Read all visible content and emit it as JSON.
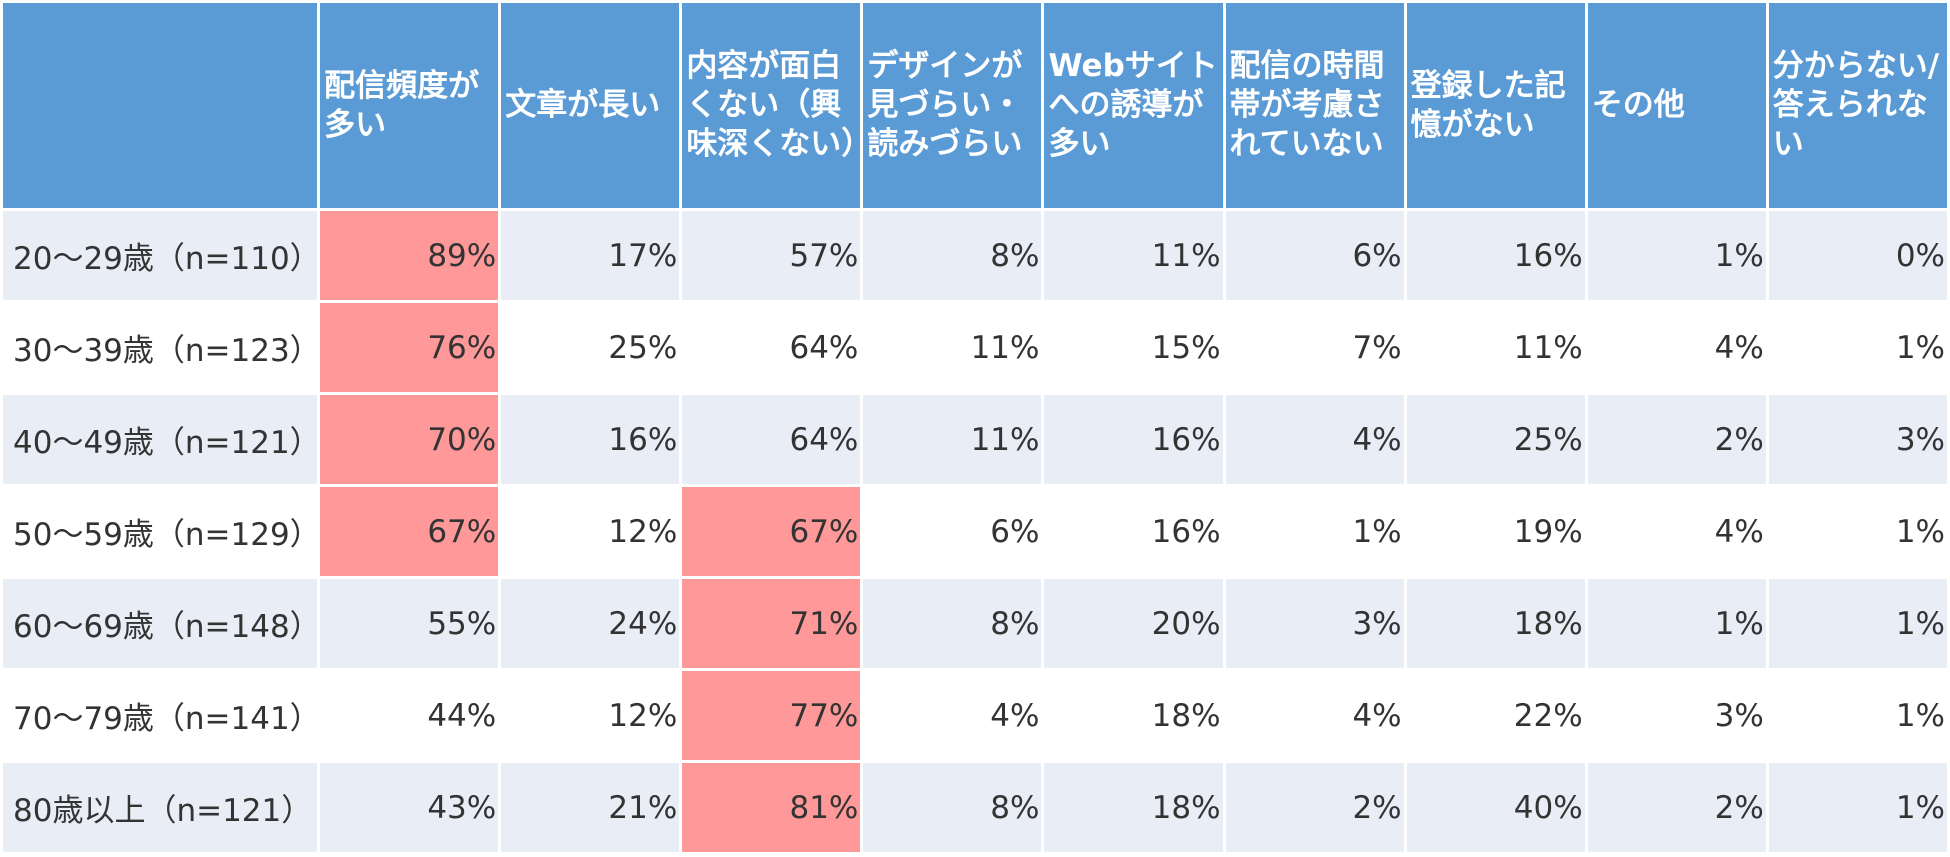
{
  "colors": {
    "header_bg": "#5b9bd5",
    "header_text": "#ffffff",
    "row_odd_bg": "#e9edf5",
    "row_even_bg": "#ffffff",
    "highlight_bg": "#ff9999",
    "cell_text": "#333333"
  },
  "chart_data": {
    "type": "table",
    "title": "",
    "corner": "",
    "columns": [
      "配信頻度が多い",
      "文章が長い",
      "内容が面白くない（興味深くない）",
      "デザインが見づらい・読みづらい",
      "Webサイトへの誘導が多い",
      "配信の時間帯が考慮されていない",
      "登録した記憶がない",
      "その他",
      "分からない/答えられない"
    ],
    "rows": [
      {
        "label": "20～29歳（n=110）",
        "values": [
          "89%",
          "17%",
          "57%",
          "8%",
          "11%",
          "6%",
          "16%",
          "1%",
          "0%"
        ],
        "highlight": [
          0
        ]
      },
      {
        "label": "30～39歳（n=123）",
        "values": [
          "76%",
          "25%",
          "64%",
          "11%",
          "15%",
          "7%",
          "11%",
          "4%",
          "1%"
        ],
        "highlight": [
          0
        ]
      },
      {
        "label": "40～49歳（n=121）",
        "values": [
          "70%",
          "16%",
          "64%",
          "11%",
          "16%",
          "4%",
          "25%",
          "2%",
          "3%"
        ],
        "highlight": [
          0
        ]
      },
      {
        "label": "50～59歳（n=129）",
        "values": [
          "67%",
          "12%",
          "67%",
          "6%",
          "16%",
          "1%",
          "19%",
          "4%",
          "1%"
        ],
        "highlight": [
          0,
          2
        ]
      },
      {
        "label": "60～69歳（n=148）",
        "values": [
          "55%",
          "24%",
          "71%",
          "8%",
          "20%",
          "3%",
          "18%",
          "1%",
          "1%"
        ],
        "highlight": [
          2
        ]
      },
      {
        "label": "70～79歳（n=141）",
        "values": [
          "44%",
          "12%",
          "77%",
          "4%",
          "18%",
          "4%",
          "22%",
          "3%",
          "1%"
        ],
        "highlight": [
          2
        ]
      },
      {
        "label": "80歳以上（n=121）",
        "values": [
          "43%",
          "21%",
          "81%",
          "8%",
          "18%",
          "2%",
          "40%",
          "2%",
          "1%"
        ],
        "highlight": [
          2
        ]
      }
    ]
  }
}
